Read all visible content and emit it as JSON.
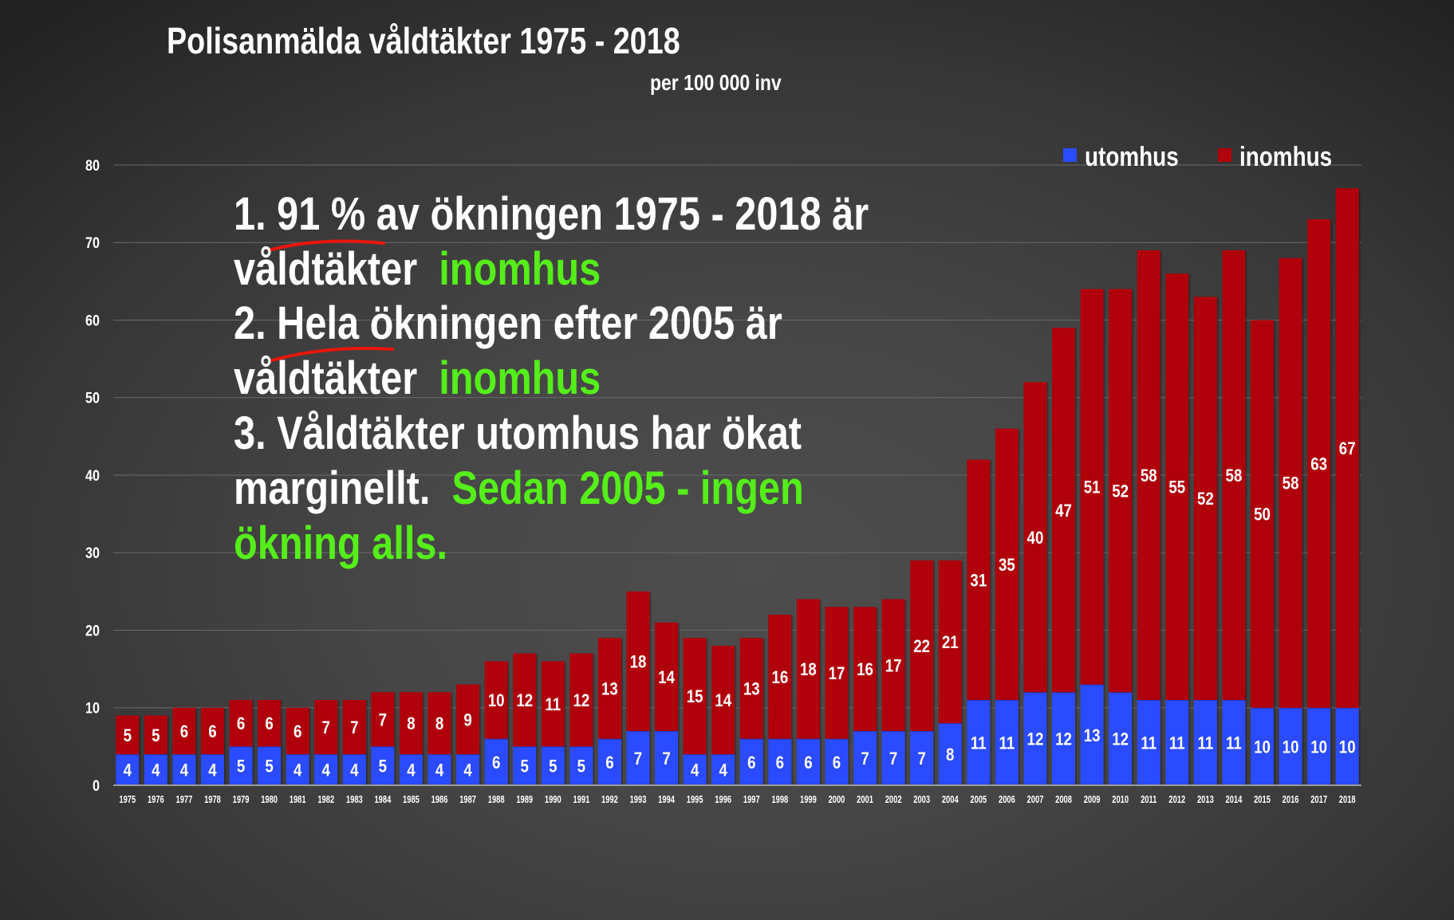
{
  "title": "Polisanmälda våldtäkter 1975 - 2018",
  "subtitle": "per 100 000 inv",
  "legend": [
    {
      "label": "utomhus",
      "color": "#2a4bff"
    },
    {
      "label": "inomhus",
      "color": "#b0000b"
    }
  ],
  "notes": {
    "line1_a": "1. 91 % av ökningen 1975 - 2018 är",
    "line2_a": "våldtäkter",
    "line2_b": "inomhus",
    "line3_a": "2. Hela ökningen efter 2005 är",
    "line4_a": "våldtäkter",
    "line4_b": "inomhus",
    "line5_a": "3. Våldtäkter utomhus har ökat",
    "line6_a": "marginellt.",
    "line6_b": "Sedan 2005 - ingen",
    "line7_b": "ökning alls.",
    "highlight_color": "#55ee1a",
    "underline_color": "#e8160c"
  },
  "chart_data": {
    "type": "bar",
    "stacked": true,
    "title": "Polisanmälda våldtäkter 1975 - 2018",
    "subtitle": "per 100 000 inv",
    "xlabel": "",
    "ylabel": "",
    "ylim": [
      0,
      80
    ],
    "yticks": [
      0,
      10,
      20,
      30,
      40,
      50,
      60,
      70,
      80
    ],
    "grid": true,
    "legend_position": "top-right",
    "categories": [
      "1975",
      "1976",
      "1977",
      "1978",
      "1979",
      "1980",
      "1981",
      "1982",
      "1983",
      "1984",
      "1985",
      "1986",
      "1987",
      "1988",
      "1989",
      "1990",
      "1991",
      "1992",
      "1993",
      "1994",
      "1995",
      "1996",
      "1997",
      "1998",
      "1999",
      "2000",
      "2001",
      "2002",
      "2003",
      "2004",
      "2005",
      "2006",
      "2007",
      "2008",
      "2009",
      "2010",
      "2011",
      "2012",
      "2013",
      "2014",
      "2015",
      "2016",
      "2017",
      "2018"
    ],
    "series": [
      {
        "name": "utomhus",
        "color": "#2a4bff",
        "values": [
          4,
          4,
          4,
          4,
          5,
          5,
          4,
          4,
          4,
          5,
          4,
          4,
          4,
          6,
          5,
          5,
          5,
          6,
          7,
          7,
          4,
          4,
          6,
          6,
          6,
          6,
          7,
          7,
          7,
          8,
          11,
          11,
          12,
          12,
          13,
          12,
          11,
          11,
          11,
          11,
          10,
          10,
          10,
          10
        ]
      },
      {
        "name": "inomhus",
        "color": "#b0000b",
        "values": [
          5,
          5,
          6,
          6,
          6,
          6,
          6,
          7,
          7,
          7,
          8,
          8,
          9,
          10,
          12,
          11,
          12,
          13,
          18,
          14,
          15,
          14,
          13,
          16,
          18,
          17,
          16,
          17,
          22,
          21,
          31,
          35,
          40,
          47,
          51,
          52,
          58,
          55,
          52,
          58,
          50,
          58,
          63,
          67
        ]
      }
    ]
  }
}
